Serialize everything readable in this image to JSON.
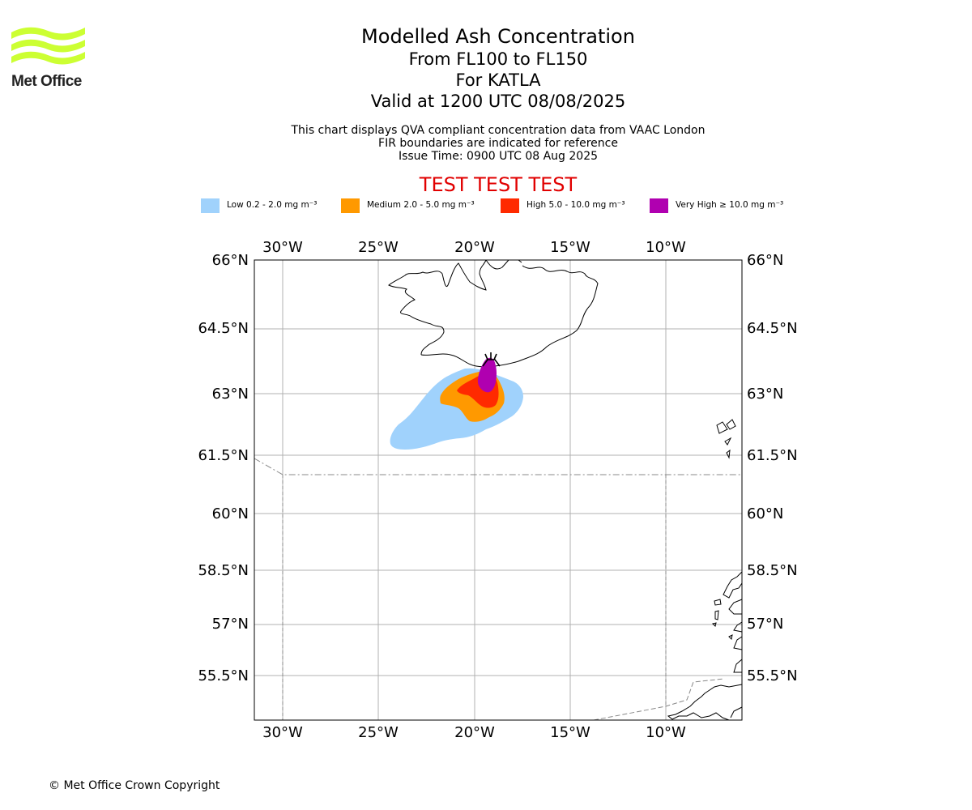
{
  "logo": {
    "text": "Met Office",
    "icon": "met-office-waves-icon",
    "color": "#ccff33"
  },
  "titles": {
    "main": "Modelled Ash Concentration",
    "level": "From FL100 to FL150",
    "volcano": "For KATLA",
    "valid": "Valid at 1200 UTC 08/08/2025",
    "note1": "This chart displays QVA compliant concentration data from VAAC London",
    "note2": "FIR boundaries are indicated for reference",
    "issue": "Issue Time: 0900 UTC 08 Aug 2025",
    "test_banner": "TEST TEST TEST"
  },
  "legend": [
    {
      "label": "Low 0.2 - 2.0 mg m⁻³",
      "color": "#a0d2fc"
    },
    {
      "label": "Medium 2.0 - 5.0 mg m⁻³",
      "color": "#ff9900"
    },
    {
      "label": "High 5.0 - 10.0 mg m⁻³",
      "color": "#ff2a00"
    },
    {
      "label": "Very High  ≥  10.0 mg m⁻³",
      "color": "#b000b0"
    }
  ],
  "map": {
    "lon_ticks": [
      "30°W",
      "25°W",
      "20°W",
      "15°W",
      "10°W"
    ],
    "lat_ticks": [
      "66°N",
      "64.5°N",
      "63°N",
      "61.5°N",
      "60°N",
      "58.5°N",
      "57°N",
      "55.5°N"
    ],
    "volcano_symbol": "volcano-icon"
  },
  "copyright": "© Met Office Crown Copyright"
}
